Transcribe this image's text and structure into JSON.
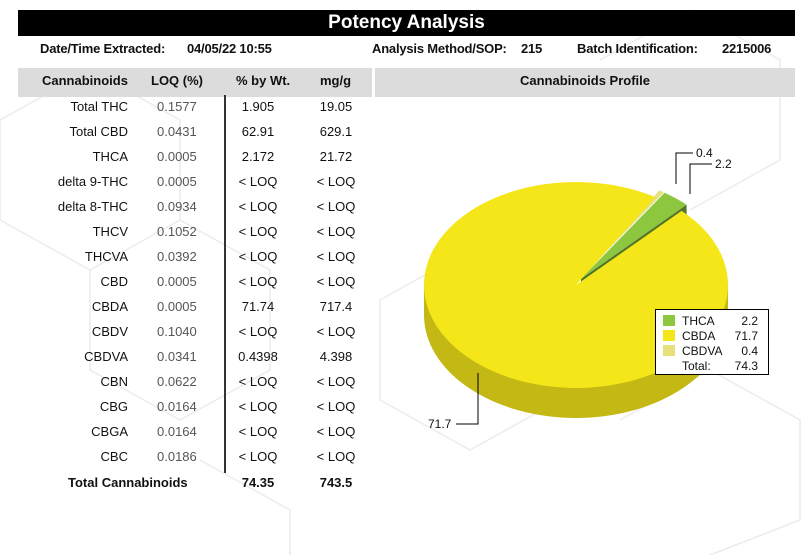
{
  "title": "Potency Analysis",
  "meta": {
    "extracted_label": "Date/Time Extracted:",
    "extracted_value": "04/05/22  10:55",
    "method_label": "Analysis Method/SOP:",
    "method_value": "215",
    "batch_label": "Batch Identification:",
    "batch_value": "2215006"
  },
  "table": {
    "headers": [
      "Cannabinoids",
      "LOQ (%)",
      "% by Wt.",
      "mg/g"
    ],
    "rows": [
      [
        "Total THC",
        "0.1577",
        "1.905",
        "19.05"
      ],
      [
        "Total CBD",
        "0.0431",
        "62.91",
        "629.1"
      ],
      [
        "THCA",
        "0.0005",
        "2.172",
        "21.72"
      ],
      [
        "delta 9-THC",
        "0.0005",
        "< LOQ",
        "< LOQ"
      ],
      [
        "delta 8-THC",
        "0.0934",
        "< LOQ",
        "< LOQ"
      ],
      [
        "THCV",
        "0.1052",
        "< LOQ",
        "< LOQ"
      ],
      [
        "THCVA",
        "0.0392",
        "< LOQ",
        "< LOQ"
      ],
      [
        "CBD",
        "0.0005",
        "< LOQ",
        "< LOQ"
      ],
      [
        "CBDA",
        "0.0005",
        "71.74",
        "717.4"
      ],
      [
        "CBDV",
        "0.1040",
        "< LOQ",
        "< LOQ"
      ],
      [
        "CBDVA",
        "0.0341",
        "0.4398",
        "4.398"
      ],
      [
        "CBN",
        "0.0622",
        "< LOQ",
        "< LOQ"
      ],
      [
        "CBG",
        "0.0164",
        "< LOQ",
        "< LOQ"
      ],
      [
        "CBGA",
        "0.0164",
        "< LOQ",
        "< LOQ"
      ],
      [
        "CBC",
        "0.0186",
        "< LOQ",
        "< LOQ"
      ]
    ],
    "total": {
      "label": "Total Cannabinoids",
      "pct": "74.35",
      "mg": "743.5"
    }
  },
  "chart_data": {
    "type": "pie",
    "title": "Cannabinoids Profile",
    "slices": [
      {
        "name": "THCA",
        "value": 2.2,
        "label": "2.2",
        "color": "#8dc63f"
      },
      {
        "name": "CBDA",
        "value": 71.7,
        "label": "71.7",
        "color": "#f5e61a"
      },
      {
        "name": "CBDVA",
        "value": 0.4,
        "label": "0.4",
        "color": "#e8e07a"
      }
    ],
    "legend": {
      "position": "right",
      "total_label": "Total:",
      "total_value": "74.3"
    },
    "style": "3d"
  }
}
